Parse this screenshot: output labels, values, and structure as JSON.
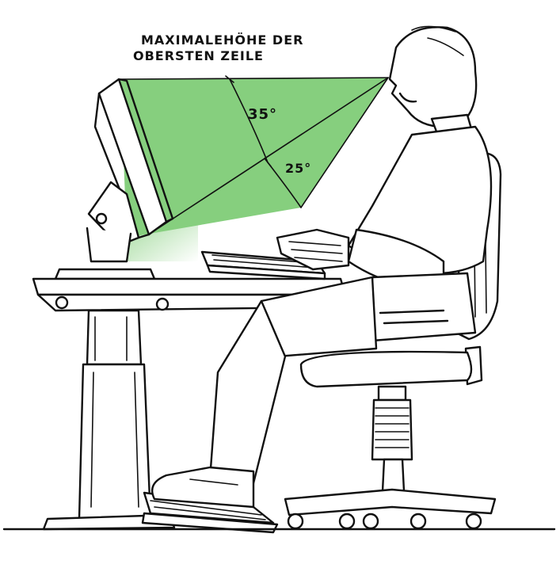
{
  "labels": {
    "caption_line1": "MAXIMALEHÖHE DER",
    "caption_line2": "OBERSTEN ZEILE",
    "angle_upper": "35°",
    "angle_lower": "25°"
  },
  "colors": {
    "view_cone": "#86cf7e",
    "ink": "#111111",
    "background": "#ffffff"
  }
}
